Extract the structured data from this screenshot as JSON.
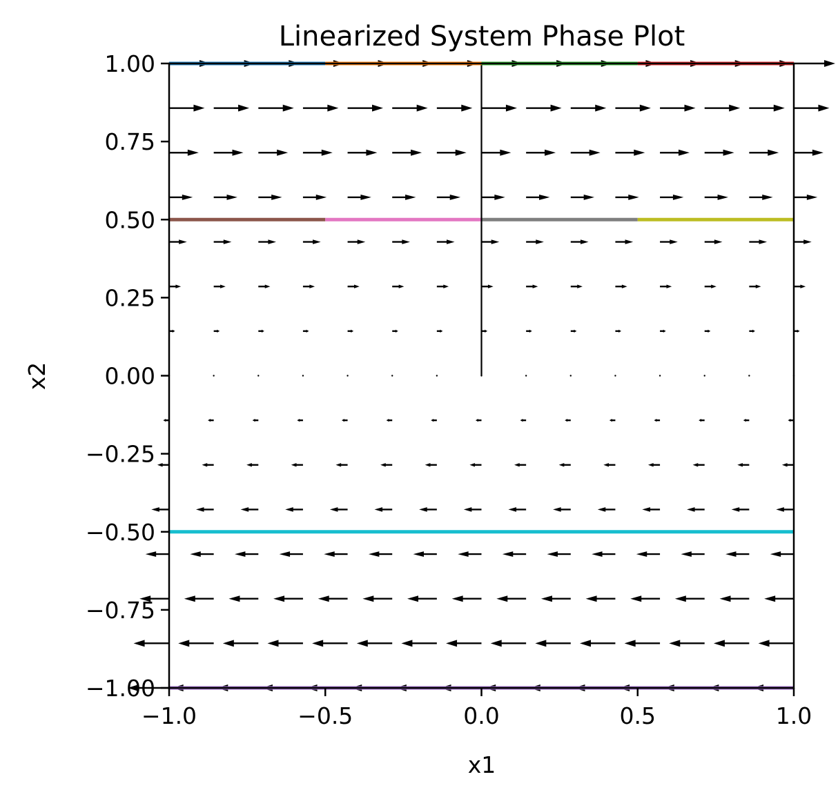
{
  "chart_data": {
    "type": "quiver",
    "title": "Linearized System Phase Plot",
    "xlabel": "x1",
    "ylabel": "x2",
    "xlim": [
      -1.0,
      1.0
    ],
    "ylim": [
      -1.0,
      1.0
    ],
    "xticks": [
      "−1.0",
      "−0.5",
      "0.0",
      "0.5",
      "1.0"
    ],
    "yticks": [
      "−1.00",
      "−0.75",
      "−0.50",
      "−0.25",
      "0.00",
      "0.25",
      "0.50",
      "0.75",
      "1.00"
    ],
    "grid": false,
    "vector_field": {
      "x_start": -1.0,
      "x_step": 0.142857,
      "x_count": 15,
      "y_start": -1.0,
      "y_step": 0.142857,
      "y_count": 15,
      "dx_equals": "x2",
      "dy": 0,
      "color": "#000000"
    },
    "trajectories": [
      {
        "x": [
          -1.0,
          -0.5
        ],
        "y": [
          0.5,
          0.5
        ],
        "color": "#8c564b"
      },
      {
        "x": [
          -0.5,
          0.0
        ],
        "y": [
          0.5,
          0.5
        ],
        "color": "#e377c2"
      },
      {
        "x": [
          0.0,
          0.5
        ],
        "y": [
          0.5,
          0.5
        ],
        "color": "#7f7f7f"
      },
      {
        "x": [
          0.5,
          1.0
        ],
        "y": [
          0.5,
          0.5
        ],
        "color": "#bcbd22"
      },
      {
        "x": [
          -1.0,
          1.0
        ],
        "y": [
          -0.5,
          -0.5
        ],
        "color": "#17becf"
      },
      {
        "x": [
          0.0,
          0.0
        ],
        "y": [
          0.0,
          1.0
        ],
        "color": "#000000"
      },
      {
        "x": [
          -1.0,
          -0.5
        ],
        "y": [
          1.0,
          1.0
        ],
        "color": "#1f77b4"
      },
      {
        "x": [
          -0.5,
          0.0
        ],
        "y": [
          1.0,
          1.0
        ],
        "color": "#ff7f0e"
      },
      {
        "x": [
          0.0,
          0.5
        ],
        "y": [
          1.0,
          1.0
        ],
        "color": "#2ca02c"
      },
      {
        "x": [
          0.5,
          1.0
        ],
        "y": [
          1.0,
          1.0
        ],
        "color": "#d62728"
      },
      {
        "x": [
          -1.0,
          1.0
        ],
        "y": [
          -1.0,
          -1.0
        ],
        "color": "#9467bd"
      }
    ]
  }
}
